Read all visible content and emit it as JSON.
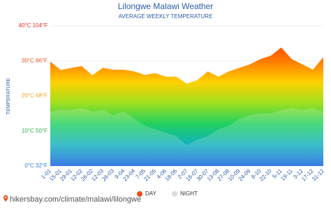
{
  "chart_data": {
    "type": "area",
    "title": "Lilongwe Malawi Weather",
    "subtitle": "AVERAGE WEEKLY TEMPERATURE",
    "y_label": "TEMPERATURE",
    "source": "hikersbay.com/climate/malawi/lilongwe",
    "categories": [
      "1-01",
      "15-01",
      "29-01",
      "12-02",
      "26-02",
      "12-03",
      "26-03",
      "9-04",
      "23-04",
      "7-05",
      "21-05",
      "4-06",
      "18-06",
      "2-07",
      "16-07",
      "30-07",
      "13-08",
      "27-08",
      "10-09",
      "24-09",
      "8-10",
      "22-10",
      "5-11",
      "19-11",
      "3-12",
      "17-12",
      "31-12"
    ],
    "series": [
      {
        "name": "DAY",
        "color": "#e8501e",
        "values": [
          29.8,
          27.4,
          28,
          28.5,
          25.9,
          28,
          27.5,
          27.5,
          27,
          26,
          26.5,
          25.5,
          25.5,
          23.5,
          24.5,
          27,
          25.5,
          27,
          28,
          29,
          30.5,
          31.5,
          33.8,
          30.5,
          29,
          27.5,
          31
        ]
      },
      {
        "name": "NIGHT",
        "color": "#dcdcdc",
        "values": [
          15.5,
          16,
          16,
          16.5,
          15.5,
          16,
          14.5,
          15.5,
          13.5,
          11.5,
          10.5,
          9.5,
          8.5,
          6,
          7.5,
          8.5,
          10.5,
          11.5,
          13.5,
          14.5,
          15,
          15,
          16,
          16.5,
          16,
          16.5,
          15.5
        ]
      }
    ],
    "ylim": [
      0,
      40
    ],
    "yticks": [
      {
        "value": 0,
        "label": "0°C 32°F"
      },
      {
        "value": 10,
        "label": "10°C 50°F"
      },
      {
        "value": 20,
        "label": "20°C 68°F"
      },
      {
        "value": 30,
        "label": "30°C 86°F"
      },
      {
        "value": 40,
        "label": "40°C 104°F"
      }
    ],
    "ytick_colors": [
      "#2a7fd0",
      "#2fae4f",
      "#f0a020",
      "#e8501e",
      "#e0301e"
    ],
    "grid": true
  }
}
